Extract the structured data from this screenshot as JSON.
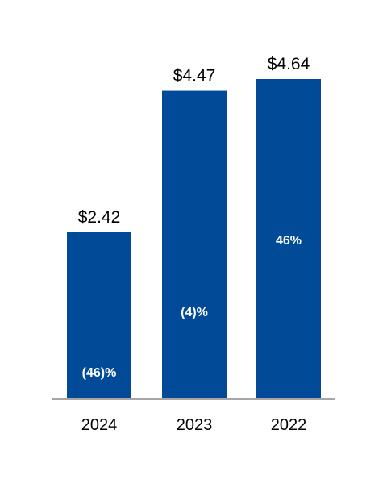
{
  "chart_data": {
    "type": "bar",
    "categories": [
      "2024",
      "2023",
      "2022"
    ],
    "values": [
      2.42,
      4.47,
      4.64
    ],
    "value_labels": [
      "$2.42",
      "$4.47",
      "$4.64"
    ],
    "change_labels": [
      "(46)%",
      "(4)%",
      "46%"
    ],
    "title": "",
    "xlabel": "",
    "ylabel": "",
    "ylim": [
      0,
      4.64
    ],
    "grid": false,
    "legend": "none",
    "colors": {
      "bar": "#004A98",
      "axis": "#A6A6A6",
      "value_text": "#000000",
      "change_text": "#FFFFFF"
    }
  }
}
